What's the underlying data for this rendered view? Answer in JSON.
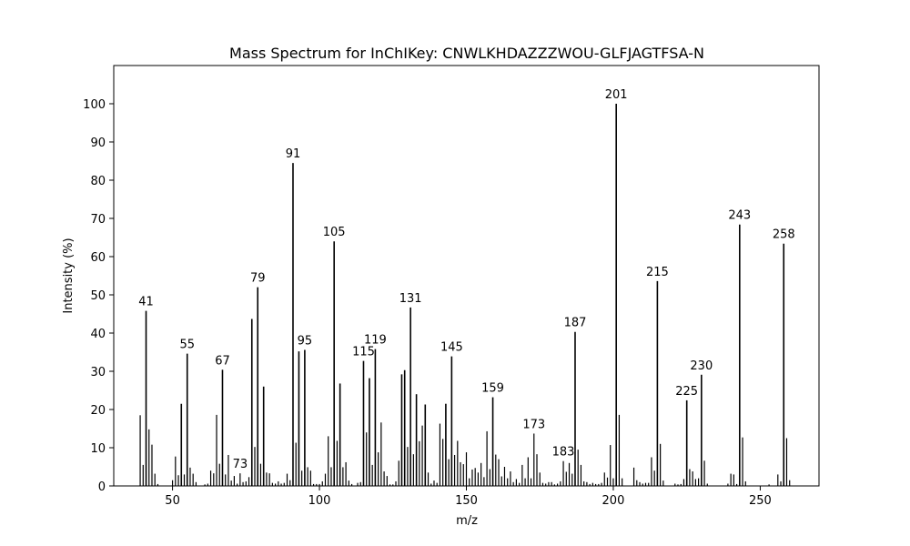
{
  "chart_data": {
    "type": "bar",
    "title": "Mass Spectrum for InChIKey: CNWLKHDAZZZWOU-GLFJAGTFSA-N",
    "xlabel": "m/z",
    "ylabel": "Intensity (%)",
    "xlim": [
      30,
      270
    ],
    "ylim": [
      0,
      110
    ],
    "xticks": [
      50,
      100,
      150,
      200,
      250
    ],
    "yticks": [
      0,
      10,
      20,
      30,
      40,
      50,
      60,
      70,
      80,
      90,
      100
    ],
    "grid": false,
    "peaks": [
      {
        "x": 39,
        "y": 18.5
      },
      {
        "x": 40,
        "y": 5.5
      },
      {
        "x": 41,
        "y": 45.8
      },
      {
        "x": 42,
        "y": 14.8
      },
      {
        "x": 43,
        "y": 10.8
      },
      {
        "x": 44,
        "y": 3.2
      },
      {
        "x": 45,
        "y": 0.5
      },
      {
        "x": 50,
        "y": 1.5
      },
      {
        "x": 51,
        "y": 7.7
      },
      {
        "x": 52,
        "y": 2.8
      },
      {
        "x": 53,
        "y": 21.5
      },
      {
        "x": 54,
        "y": 3.0
      },
      {
        "x": 55,
        "y": 34.6
      },
      {
        "x": 56,
        "y": 4.8
      },
      {
        "x": 57,
        "y": 3.2
      },
      {
        "x": 58,
        "y": 1.0
      },
      {
        "x": 61,
        "y": 0.4
      },
      {
        "x": 62,
        "y": 0.6
      },
      {
        "x": 63,
        "y": 4.0
      },
      {
        "x": 64,
        "y": 3.3
      },
      {
        "x": 65,
        "y": 18.6
      },
      {
        "x": 66,
        "y": 5.8
      },
      {
        "x": 67,
        "y": 30.4
      },
      {
        "x": 68,
        "y": 3.0
      },
      {
        "x": 69,
        "y": 8.1
      },
      {
        "x": 70,
        "y": 1.4
      },
      {
        "x": 71,
        "y": 2.6
      },
      {
        "x": 72,
        "y": 0.6
      },
      {
        "x": 73,
        "y": 3.3
      },
      {
        "x": 74,
        "y": 1.0
      },
      {
        "x": 75,
        "y": 1.2
      },
      {
        "x": 76,
        "y": 2.3
      },
      {
        "x": 77,
        "y": 43.7
      },
      {
        "x": 78,
        "y": 10.2
      },
      {
        "x": 79,
        "y": 52.0
      },
      {
        "x": 80,
        "y": 5.8
      },
      {
        "x": 81,
        "y": 26.0
      },
      {
        "x": 82,
        "y": 3.5
      },
      {
        "x": 83,
        "y": 3.3
      },
      {
        "x": 84,
        "y": 0.8
      },
      {
        "x": 85,
        "y": 0.6
      },
      {
        "x": 86,
        "y": 1.2
      },
      {
        "x": 87,
        "y": 0.6
      },
      {
        "x": 88,
        "y": 0.8
      },
      {
        "x": 89,
        "y": 3.2
      },
      {
        "x": 90,
        "y": 1.5
      },
      {
        "x": 91,
        "y": 84.5
      },
      {
        "x": 92,
        "y": 11.3
      },
      {
        "x": 93,
        "y": 35.2
      },
      {
        "x": 94,
        "y": 4.0
      },
      {
        "x": 95,
        "y": 35.6
      },
      {
        "x": 96,
        "y": 4.9
      },
      {
        "x": 97,
        "y": 4.0
      },
      {
        "x": 98,
        "y": 0.5
      },
      {
        "x": 99,
        "y": 0.5
      },
      {
        "x": 100,
        "y": 0.5
      },
      {
        "x": 101,
        "y": 1.2
      },
      {
        "x": 102,
        "y": 3.2
      },
      {
        "x": 103,
        "y": 13.0
      },
      {
        "x": 104,
        "y": 4.9
      },
      {
        "x": 105,
        "y": 64.0
      },
      {
        "x": 106,
        "y": 11.8
      },
      {
        "x": 107,
        "y": 26.8
      },
      {
        "x": 108,
        "y": 4.9
      },
      {
        "x": 109,
        "y": 6.2
      },
      {
        "x": 110,
        "y": 1.4
      },
      {
        "x": 111,
        "y": 0.5
      },
      {
        "x": 113,
        "y": 0.8
      },
      {
        "x": 114,
        "y": 1.0
      },
      {
        "x": 115,
        "y": 32.7
      },
      {
        "x": 116,
        "y": 14.0
      },
      {
        "x": 117,
        "y": 28.2
      },
      {
        "x": 118,
        "y": 5.5
      },
      {
        "x": 119,
        "y": 35.8
      },
      {
        "x": 120,
        "y": 8.8
      },
      {
        "x": 121,
        "y": 16.6
      },
      {
        "x": 122,
        "y": 3.8
      },
      {
        "x": 123,
        "y": 2.6
      },
      {
        "x": 124,
        "y": 0.4
      },
      {
        "x": 125,
        "y": 0.4
      },
      {
        "x": 126,
        "y": 1.2
      },
      {
        "x": 127,
        "y": 6.6
      },
      {
        "x": 128,
        "y": 29.2
      },
      {
        "x": 129,
        "y": 30.3
      },
      {
        "x": 130,
        "y": 10.2
      },
      {
        "x": 131,
        "y": 46.7
      },
      {
        "x": 132,
        "y": 8.3
      },
      {
        "x": 133,
        "y": 24.0
      },
      {
        "x": 134,
        "y": 11.7
      },
      {
        "x": 135,
        "y": 15.8
      },
      {
        "x": 136,
        "y": 21.3
      },
      {
        "x": 137,
        "y": 3.5
      },
      {
        "x": 138,
        "y": 0.6
      },
      {
        "x": 139,
        "y": 1.4
      },
      {
        "x": 140,
        "y": 0.8
      },
      {
        "x": 141,
        "y": 16.3
      },
      {
        "x": 142,
        "y": 12.3
      },
      {
        "x": 143,
        "y": 21.5
      },
      {
        "x": 144,
        "y": 7.0
      },
      {
        "x": 145,
        "y": 33.9
      },
      {
        "x": 146,
        "y": 8.1
      },
      {
        "x": 147,
        "y": 11.8
      },
      {
        "x": 148,
        "y": 6.2
      },
      {
        "x": 149,
        "y": 5.7
      },
      {
        "x": 150,
        "y": 8.8
      },
      {
        "x": 151,
        "y": 2.0
      },
      {
        "x": 152,
        "y": 4.3
      },
      {
        "x": 153,
        "y": 4.7
      },
      {
        "x": 154,
        "y": 3.5
      },
      {
        "x": 155,
        "y": 6.0
      },
      {
        "x": 156,
        "y": 2.3
      },
      {
        "x": 157,
        "y": 14.3
      },
      {
        "x": 158,
        "y": 4.4
      },
      {
        "x": 159,
        "y": 23.2
      },
      {
        "x": 160,
        "y": 8.2
      },
      {
        "x": 161,
        "y": 7.0
      },
      {
        "x": 162,
        "y": 2.5
      },
      {
        "x": 163,
        "y": 5.0
      },
      {
        "x": 164,
        "y": 2.0
      },
      {
        "x": 165,
        "y": 3.8
      },
      {
        "x": 166,
        "y": 1.0
      },
      {
        "x": 167,
        "y": 1.8
      },
      {
        "x": 168,
        "y": 0.8
      },
      {
        "x": 169,
        "y": 5.5
      },
      {
        "x": 170,
        "y": 2.0
      },
      {
        "x": 171,
        "y": 7.5
      },
      {
        "x": 172,
        "y": 2.0
      },
      {
        "x": 173,
        "y": 13.7
      },
      {
        "x": 174,
        "y": 8.3
      },
      {
        "x": 175,
        "y": 3.5
      },
      {
        "x": 176,
        "y": 0.8
      },
      {
        "x": 177,
        "y": 0.6
      },
      {
        "x": 178,
        "y": 1.0
      },
      {
        "x": 179,
        "y": 1.0
      },
      {
        "x": 180,
        "y": 0.4
      },
      {
        "x": 181,
        "y": 0.6
      },
      {
        "x": 182,
        "y": 1.2
      },
      {
        "x": 183,
        "y": 6.5
      },
      {
        "x": 184,
        "y": 3.7
      },
      {
        "x": 185,
        "y": 6.0
      },
      {
        "x": 186,
        "y": 3.2
      },
      {
        "x": 187,
        "y": 40.3
      },
      {
        "x": 188,
        "y": 9.5
      },
      {
        "x": 189,
        "y": 5.5
      },
      {
        "x": 190,
        "y": 1.2
      },
      {
        "x": 191,
        "y": 1.0
      },
      {
        "x": 192,
        "y": 0.5
      },
      {
        "x": 193,
        "y": 0.8
      },
      {
        "x": 194,
        "y": 0.5
      },
      {
        "x": 195,
        "y": 0.5
      },
      {
        "x": 196,
        "y": 0.8
      },
      {
        "x": 197,
        "y": 3.5
      },
      {
        "x": 198,
        "y": 2.2
      },
      {
        "x": 199,
        "y": 10.7
      },
      {
        "x": 200,
        "y": 2.0
      },
      {
        "x": 201,
        "y": 100.0
      },
      {
        "x": 202,
        "y": 18.6
      },
      {
        "x": 203,
        "y": 2.0
      },
      {
        "x": 207,
        "y": 4.8
      },
      {
        "x": 208,
        "y": 1.5
      },
      {
        "x": 209,
        "y": 1.0
      },
      {
        "x": 210,
        "y": 0.6
      },
      {
        "x": 211,
        "y": 0.8
      },
      {
        "x": 212,
        "y": 0.8
      },
      {
        "x": 213,
        "y": 7.5
      },
      {
        "x": 214,
        "y": 4.0
      },
      {
        "x": 215,
        "y": 53.6
      },
      {
        "x": 216,
        "y": 11.0
      },
      {
        "x": 217,
        "y": 1.4
      },
      {
        "x": 221,
        "y": 0.6
      },
      {
        "x": 222,
        "y": 0.4
      },
      {
        "x": 223,
        "y": 0.5
      },
      {
        "x": 224,
        "y": 1.8
      },
      {
        "x": 225,
        "y": 22.4
      },
      {
        "x": 226,
        "y": 4.4
      },
      {
        "x": 227,
        "y": 3.8
      },
      {
        "x": 228,
        "y": 1.8
      },
      {
        "x": 229,
        "y": 2.0
      },
      {
        "x": 230,
        "y": 29.1
      },
      {
        "x": 231,
        "y": 6.6
      },
      {
        "x": 232,
        "y": 0.6
      },
      {
        "x": 239,
        "y": 0.6
      },
      {
        "x": 240,
        "y": 3.2
      },
      {
        "x": 241,
        "y": 3.0
      },
      {
        "x": 242,
        "y": 0.5
      },
      {
        "x": 243,
        "y": 68.4
      },
      {
        "x": 244,
        "y": 12.7
      },
      {
        "x": 245,
        "y": 1.2
      },
      {
        "x": 253,
        "y": 0.4
      },
      {
        "x": 256,
        "y": 3.0
      },
      {
        "x": 257,
        "y": 1.2
      },
      {
        "x": 258,
        "y": 63.4
      },
      {
        "x": 259,
        "y": 12.5
      },
      {
        "x": 260,
        "y": 1.5
      }
    ],
    "labeled_peaks": [
      41,
      55,
      67,
      73,
      79,
      91,
      95,
      105,
      115,
      119,
      131,
      145,
      159,
      173,
      183,
      187,
      201,
      215,
      225,
      230,
      243,
      258
    ],
    "bar_color": "#000000"
  }
}
